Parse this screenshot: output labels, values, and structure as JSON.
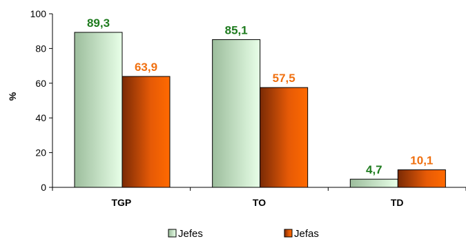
{
  "chart_data": {
    "type": "bar",
    "categories": [
      "TGP",
      "TO",
      "TD"
    ],
    "series": [
      {
        "name": "Jefes",
        "values": [
          89.3,
          85.1,
          4.7
        ],
        "labels": [
          "89,3",
          "85,1",
          "4,7"
        ],
        "label_color": "#1e7b1e"
      },
      {
        "name": "Jefas",
        "values": [
          63.9,
          57.5,
          10.1
        ],
        "labels": [
          "63,9",
          "57,5",
          "10,1"
        ],
        "label_color": "#f07010"
      }
    ],
    "ylabel": "%",
    "ylim": [
      0,
      100
    ],
    "yticks": [
      0,
      20,
      40,
      60,
      80,
      100
    ],
    "grid": false,
    "legend_position": "bottom"
  }
}
